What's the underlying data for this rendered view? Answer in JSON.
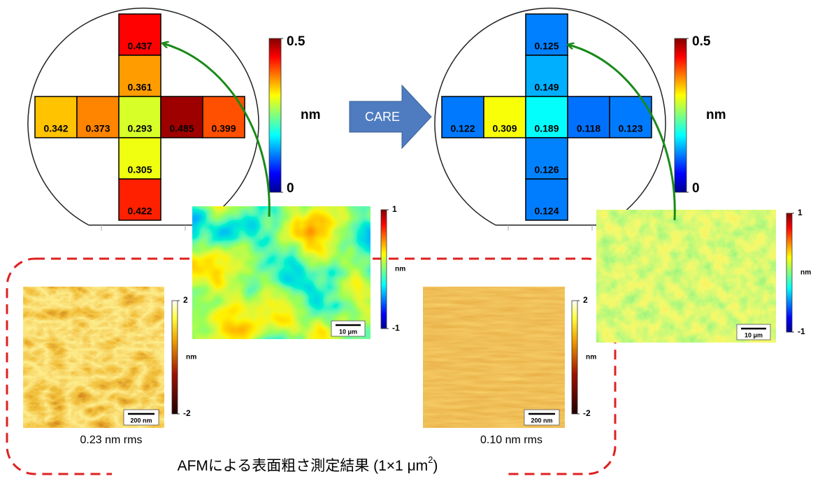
{
  "left_wafer": {
    "cells": [
      0.437,
      0.361,
      0.342,
      0.373,
      0.293,
      0.485,
      0.399,
      0.305,
      0.422
    ],
    "colorbar": {
      "max": 0.5,
      "unit": "nm",
      "min": 0
    }
  },
  "process_arrow": {
    "label": "CARE"
  },
  "right_wafer": {
    "cells": [
      0.125,
      0.149,
      0.122,
      0.309,
      0.189,
      0.118,
      0.123,
      0.126,
      0.124
    ],
    "colorbar": {
      "max": 0.5,
      "unit": "nm",
      "min": 0
    }
  },
  "left_afm_large": {
    "colorbar": {
      "max": 1,
      "unit": "nm",
      "min": -1
    },
    "scale_bar": "10 μm"
  },
  "right_afm_large": {
    "colorbar": {
      "max": 1,
      "unit": "nm",
      "min": -1
    },
    "scale_bar": "10 μm"
  },
  "left_afm_small": {
    "colorbar": {
      "max": 2,
      "unit": "nm",
      "min": -2
    },
    "scale_bar": "200 nm",
    "roughness": "0.23 nm rms"
  },
  "right_afm_small": {
    "colorbar": {
      "max": 2,
      "unit": "nm",
      "min": -2
    },
    "scale_bar": "200 nm",
    "roughness": "0.10 nm rms"
  },
  "caption": {
    "text": "AFMによる表面粗さ測定結果 (1×1 μm",
    "superscript": "2",
    "end": ")"
  }
}
